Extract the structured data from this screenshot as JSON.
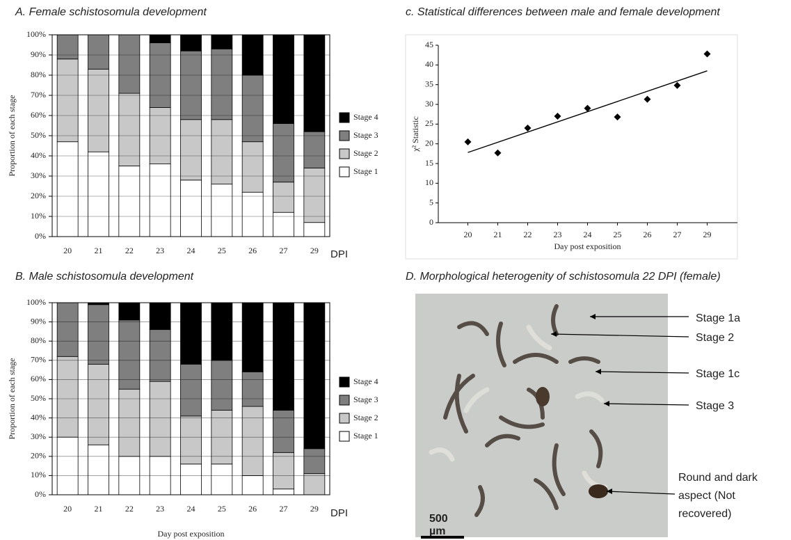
{
  "chart_data": [
    {
      "type": "stacked_bar",
      "title": "A. Female schistosomula development",
      "ylabel": "Proportion of each stage",
      "x_annotation": "DPI",
      "categories": [
        "20",
        "21",
        "22",
        "23",
        "24",
        "25",
        "26",
        "27",
        "29"
      ],
      "series": [
        {
          "name": "Stage 1",
          "color": "#ffffff",
          "values": [
            47,
            42,
            35,
            36,
            28,
            26,
            22,
            12,
            7
          ]
        },
        {
          "name": "Stage 2",
          "color": "#c8c8c8",
          "values": [
            41,
            41,
            36,
            28,
            30,
            32,
            25,
            15,
            27
          ]
        },
        {
          "name": "Stage 3",
          "color": "#7f7f7f",
          "values": [
            12,
            17,
            29,
            32,
            34,
            35,
            33,
            29,
            18
          ]
        },
        {
          "name": "Stage 4",
          "color": "#000000",
          "values": [
            0,
            0,
            0,
            4,
            8,
            7,
            20,
            44,
            48
          ]
        }
      ],
      "ylim": [
        0,
        100
      ],
      "yticks": [
        {
          "value": 0,
          "label": "0%"
        },
        {
          "value": 10,
          "label": "10%"
        },
        {
          "value": 20,
          "label": "20%"
        },
        {
          "value": 30,
          "label": "30%"
        },
        {
          "value": 40,
          "label": "40%"
        },
        {
          "value": 50,
          "label": "50%"
        },
        {
          "value": 60,
          "label": "60%"
        },
        {
          "value": 70,
          "label": "70%"
        },
        {
          "value": 80,
          "label": "80%"
        },
        {
          "value": 90,
          "label": "90%"
        },
        {
          "value": 100,
          "label": "100%"
        }
      ],
      "grid": true,
      "legend": "right"
    },
    {
      "type": "stacked_bar",
      "title": "B. Male schistosomula development",
      "ylabel": "Proportion of each stage",
      "xlabel": "Day post exposition",
      "x_annotation": "DPI",
      "categories": [
        "20",
        "21",
        "22",
        "23",
        "24",
        "25",
        "26",
        "27",
        "29"
      ],
      "series": [
        {
          "name": "Stage 1",
          "color": "#ffffff",
          "values": [
            30,
            26,
            20,
            20,
            16,
            16,
            10,
            3,
            0
          ]
        },
        {
          "name": "Stage 2",
          "color": "#c8c8c8",
          "values": [
            42,
            42,
            35,
            39,
            25,
            28,
            36,
            19,
            11
          ]
        },
        {
          "name": "Stage 3",
          "color": "#7f7f7f",
          "values": [
            28,
            31,
            36,
            27,
            27,
            26,
            18,
            22,
            13
          ]
        },
        {
          "name": "Stage 4",
          "color": "#000000",
          "values": [
            0,
            1,
            9,
            14,
            32,
            30,
            36,
            56,
            76
          ]
        }
      ],
      "ylim": [
        0,
        100
      ],
      "yticks": [
        {
          "value": 0,
          "label": "0%"
        },
        {
          "value": 10,
          "label": "10%"
        },
        {
          "value": 20,
          "label": "20%"
        },
        {
          "value": 30,
          "label": "30%"
        },
        {
          "value": 40,
          "label": "40%"
        },
        {
          "value": 50,
          "label": "50%"
        },
        {
          "value": 60,
          "label": "60%"
        },
        {
          "value": 70,
          "label": "70%"
        },
        {
          "value": 80,
          "label": "80%"
        },
        {
          "value": 90,
          "label": "90%"
        },
        {
          "value": 100,
          "label": "100%"
        }
      ],
      "grid": true,
      "legend": "right"
    },
    {
      "type": "scatter",
      "title": "c. Statistical differences between male and female development",
      "ylabel": "χ² Statistic",
      "xlabel": "Day post exposition",
      "categories": [
        "20",
        "21",
        "22",
        "23",
        "24",
        "25",
        "26",
        "27",
        "29"
      ],
      "values": [
        20.5,
        17.7,
        24,
        27,
        29,
        26.8,
        31.3,
        34.8,
        42.8
      ],
      "color": "#000000",
      "trendline": {
        "start": 17.8,
        "end": 38.5
      },
      "ylim": [
        0,
        45
      ],
      "yticks": [
        0,
        5,
        10,
        15,
        20,
        25,
        30,
        35,
        40,
        45
      ],
      "grid": false
    }
  ],
  "panel_d": {
    "title": "D. Morphological heterogenity of schistosomula 22 DPI (female)",
    "annotations": [
      "Stage 1a",
      "Stage 2",
      "Stage 1c",
      "Stage 3"
    ],
    "round_label": [
      "Round and dark",
      "aspect (Not",
      "recovered)"
    ],
    "scale_bar": [
      "500",
      "µm"
    ]
  }
}
